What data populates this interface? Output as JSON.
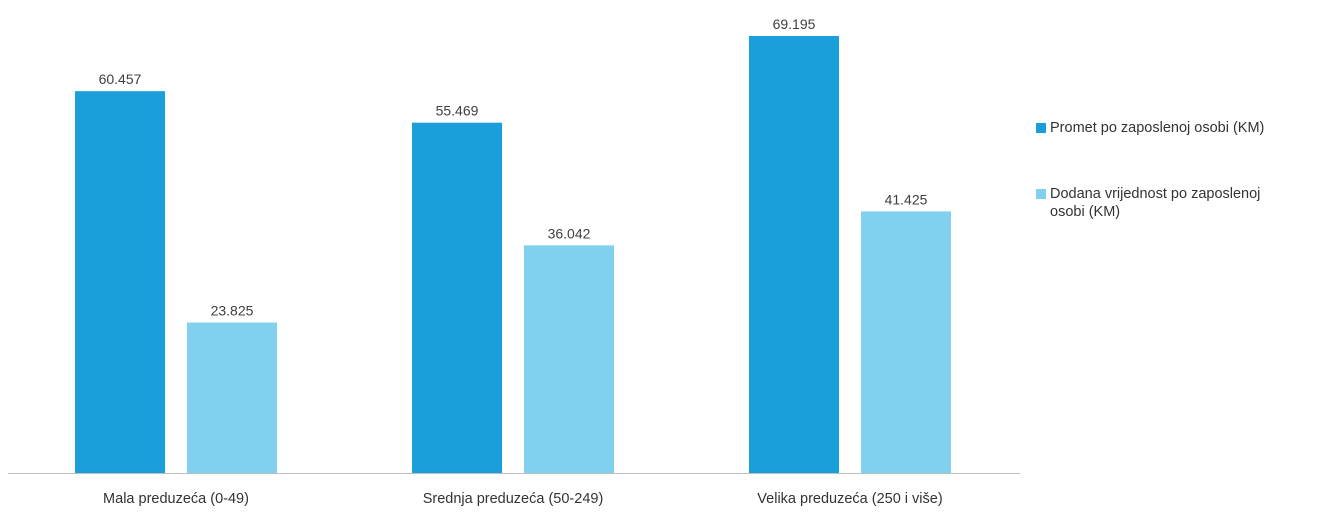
{
  "chart_data": {
    "type": "bar",
    "title": "",
    "xlabel": "",
    "ylabel": "",
    "ylim": [
      0,
      70000
    ],
    "grid": false,
    "legend_position": "right",
    "categories": [
      "Mala preduzeća (0-49)",
      "Srednja preduzeća (50-249)",
      "Velika preduzeća (250 i više)"
    ],
    "series": [
      {
        "name": "Promet po zaposlenoj osobi (KM)",
        "color": "#1a9fdb",
        "values": [
          60457,
          55469,
          69195
        ],
        "labels": [
          "60.457",
          "55.469",
          "69.195"
        ]
      },
      {
        "name": "Dodana vrijednost po zaposlenoj osobi (KM)",
        "color": "#81d0ef",
        "values": [
          23825,
          36042,
          41425
        ],
        "labels": [
          "23.825",
          "36.042",
          "41.425"
        ]
      }
    ]
  }
}
